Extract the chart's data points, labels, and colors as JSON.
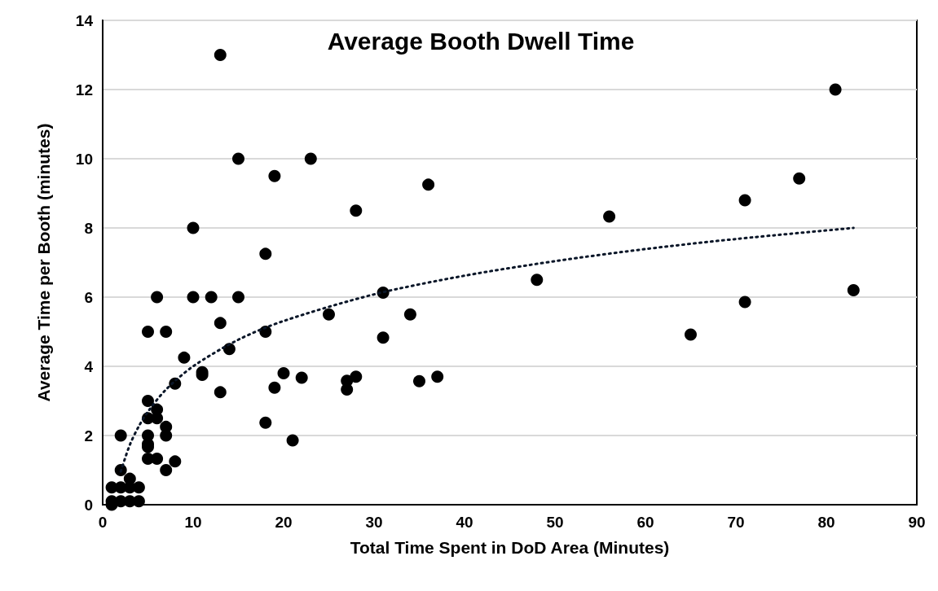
{
  "chart_data": {
    "type": "scatter",
    "title": "Average Booth Dwell Time",
    "xlabel": "Total Time Spent in DoD Area (Minutes)",
    "ylabel": "Average Time per Booth (minutes)",
    "xlim": [
      0,
      90
    ],
    "xticks": [
      0,
      10,
      20,
      30,
      40,
      50,
      60,
      70,
      80,
      90
    ],
    "ylim": [
      0,
      14
    ],
    "yticks": [
      0,
      2,
      4,
      6,
      8,
      10,
      12,
      14
    ],
    "grid": "y",
    "marker": "circle",
    "series": [
      {
        "color": "#000000",
        "x": [
          1,
          1,
          1,
          2,
          2,
          2,
          2,
          3,
          3,
          3,
          4,
          4,
          5,
          5,
          5,
          5,
          5,
          5,
          5,
          6,
          6,
          6,
          6,
          7,
          7,
          7,
          7,
          8,
          8,
          9,
          10,
          10,
          11,
          11,
          12,
          13,
          13,
          13,
          14,
          15,
          15,
          18,
          18,
          18,
          19,
          19,
          20,
          21,
          22,
          23,
          25,
          27,
          27,
          28,
          28,
          31,
          31,
          34,
          35,
          36,
          37,
          48,
          56,
          65,
          71,
          71,
          77,
          81,
          83
        ],
        "values": [
          0.5,
          0.1,
          0,
          0.5,
          0.1,
          1,
          2,
          0.75,
          0.5,
          0.1,
          0.5,
          0.1,
          3,
          2.5,
          2,
          1.75,
          1.67,
          1.33,
          5,
          6,
          2.75,
          2.5,
          1.33,
          5,
          2.25,
          2,
          1,
          3.5,
          1.25,
          4.25,
          8,
          6,
          3.83,
          3.75,
          6,
          13,
          5.25,
          3.25,
          4.5,
          10,
          6,
          7.25,
          5,
          2.37,
          9.5,
          3.38,
          3.8,
          1.86,
          3.67,
          10,
          5.5,
          3.58,
          3.33,
          8.5,
          3.7,
          6.13,
          4.83,
          5.5,
          3.57,
          9.25,
          3.7,
          6.5,
          8.33,
          4.92,
          8.8,
          5.86,
          9.43,
          12,
          6.2
        ]
      },
      {
        "type": "line",
        "color": "#0a1628",
        "marker": "none",
        "line_style": "dotted",
        "x": [
          2,
          3,
          4,
          5,
          7,
          10,
          15,
          20,
          30,
          40,
          50,
          60,
          70,
          83
        ],
        "values": [
          0.96,
          1.73,
          2.27,
          2.69,
          3.33,
          4.0,
          4.77,
          5.31,
          6.08,
          6.62,
          7.04,
          7.39,
          7.68,
          8.0
        ]
      }
    ]
  }
}
